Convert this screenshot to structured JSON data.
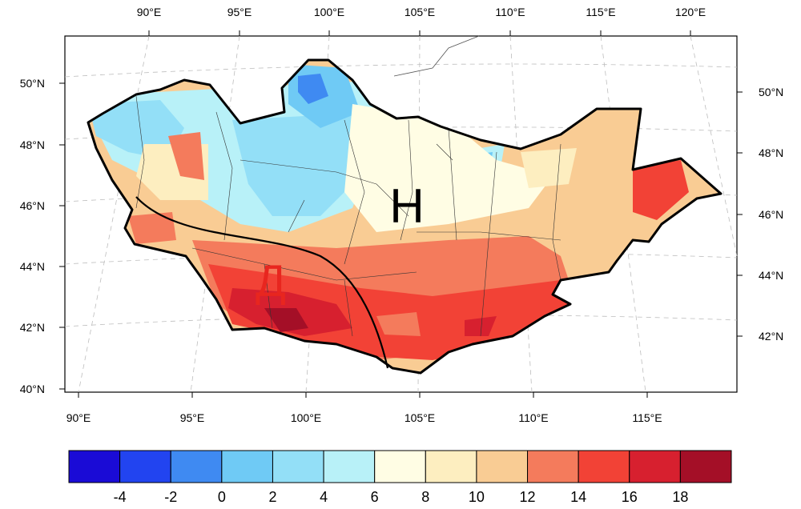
{
  "map": {
    "region_labels": [
      {
        "id": "label-h",
        "text": "Н",
        "color": "#000000"
      },
      {
        "id": "label-d",
        "text": "Д",
        "color": "#e8261f"
      }
    ],
    "top_lon_ticks": [
      "90°E",
      "95°E",
      "100°E",
      "105°E",
      "110°E",
      "115°E",
      "120°E"
    ],
    "bottom_lon_ticks": [
      "90°E",
      "95°E",
      "100°E",
      "105°E",
      "110°E",
      "115°E"
    ],
    "left_lat_ticks": [
      "50°N",
      "48°N",
      "46°N",
      "44°N",
      "42°N",
      "40°N"
    ],
    "right_lat_ticks": [
      "50°N",
      "48°N",
      "46°N",
      "44°N",
      "42°N"
    ],
    "border_color": "#000000",
    "grid_color": "#bdbdbd"
  },
  "colorbar": {
    "labels": [
      "-4",
      "-2",
      "0",
      "2",
      "4",
      "6",
      "8",
      "10",
      "12",
      "14",
      "16",
      "18"
    ],
    "colors": [
      "#1a0bd6",
      "#2244f0",
      "#3f8af2",
      "#6fcaf5",
      "#93dff7",
      "#b8f1f8",
      "#fffde4",
      "#fdeec0",
      "#f9cc94",
      "#f47b5c",
      "#f24236",
      "#d7202f",
      "#a40f27"
    ]
  }
}
